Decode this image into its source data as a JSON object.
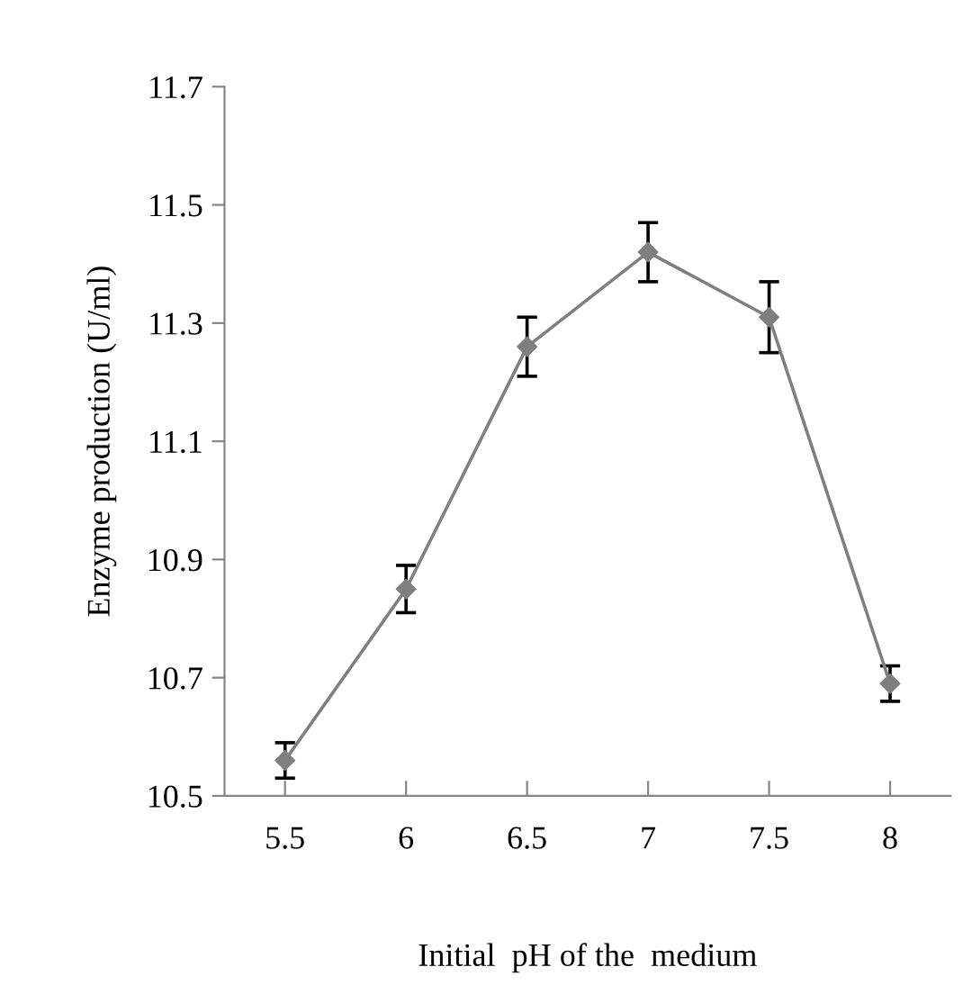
{
  "chart_data": {
    "type": "line",
    "xlabel": "Initial  pH of the  medium",
    "ylabel": "Enzyme production (U/ml)",
    "categories": [
      "5.5",
      "6",
      "6.5",
      "7",
      "7.5",
      "8"
    ],
    "series": [
      {
        "color": "#7f7f7f",
        "values": [
          10.56,
          10.85,
          11.26,
          11.42,
          11.31,
          10.69
        ],
        "errors": [
          0.03,
          0.04,
          0.05,
          0.05,
          0.06,
          0.03
        ]
      }
    ],
    "ylim": [
      10.5,
      11.7
    ],
    "yticks": [
      10.5,
      10.7,
      10.9,
      11.1,
      11.3,
      11.5,
      11.7
    ],
    "marker": "diamond",
    "line_style": "solid",
    "grid": false,
    "legend": false
  }
}
